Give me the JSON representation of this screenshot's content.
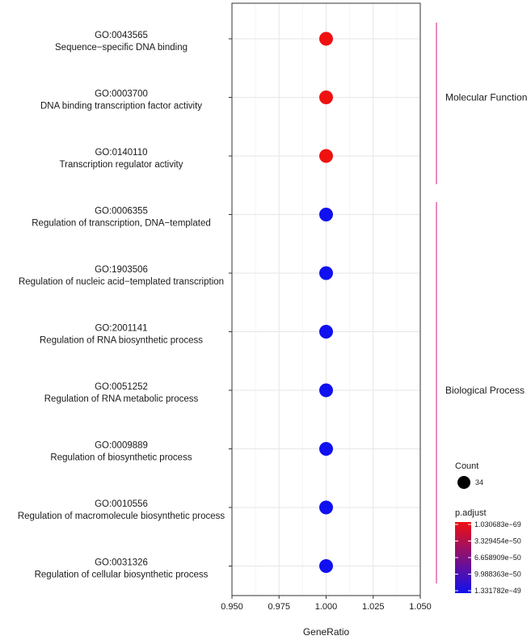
{
  "chart_data": {
    "type": "scatter",
    "xlabel": "GeneRatio",
    "xlim": [
      0.95,
      1.05
    ],
    "x_ticks": [
      "0.950",
      "0.975",
      "1.000",
      "1.025",
      "1.050"
    ],
    "x_tick_values": [
      0.95,
      0.975,
      1.0,
      1.025,
      1.05
    ],
    "grid": true,
    "terms": [
      {
        "id": "GO:0043565",
        "name": "Sequence−specific DNA binding",
        "category": "Molecular Function",
        "gene_ratio": 1.0,
        "count": 34,
        "color": "#f01010"
      },
      {
        "id": "GO:0003700",
        "name": "DNA binding transcription factor activity",
        "category": "Molecular Function",
        "gene_ratio": 1.0,
        "count": 34,
        "color": "#f01010"
      },
      {
        "id": "GO:0140110",
        "name": "Transcription regulator activity",
        "category": "Molecular Function",
        "gene_ratio": 1.0,
        "count": 34,
        "color": "#f01010"
      },
      {
        "id": "GO:0006355",
        "name": "Regulation of transcription, DNA−templated",
        "category": "Biological Process",
        "gene_ratio": 1.0,
        "count": 34,
        "color": "#1010f0"
      },
      {
        "id": "GO:1903506",
        "name": "Regulation of nucleic acid−templated transcription",
        "category": "Biological Process",
        "gene_ratio": 1.0,
        "count": 34,
        "color": "#1010f0"
      },
      {
        "id": "GO:2001141",
        "name": "Regulation of RNA biosynthetic process",
        "category": "Biological Process",
        "gene_ratio": 1.0,
        "count": 34,
        "color": "#1010f0"
      },
      {
        "id": "GO:0051252",
        "name": "Regulation of RNA metabolic process",
        "category": "Biological Process",
        "gene_ratio": 1.0,
        "count": 34,
        "color": "#1010f0"
      },
      {
        "id": "GO:0009889",
        "name": "Regulation of biosynthetic process",
        "category": "Biological Process",
        "gene_ratio": 1.0,
        "count": 34,
        "color": "#1010f0"
      },
      {
        "id": "GO:0010556",
        "name": "Regulation of macromolecule biosynthetic process",
        "category": "Biological Process",
        "gene_ratio": 1.0,
        "count": 34,
        "color": "#1010f0"
      },
      {
        "id": "GO:0031326",
        "name": "Regulation of cellular biosynthetic process",
        "category": "Biological Process",
        "gene_ratio": 1.0,
        "count": 34,
        "color": "#1010f0"
      }
    ],
    "facets": [
      {
        "label": "Molecular Function",
        "first": 0,
        "last": 2
      },
      {
        "label": "Biological Process",
        "first": 3,
        "last": 9
      }
    ],
    "facet_bar_color": "#e0409a",
    "legend_count": {
      "title": "Count",
      "value": "34"
    },
    "legend_padjust": {
      "title": "p.adjust",
      "labels": [
        "1.030683e−69",
        "3.329454e−50",
        "6.658909e−50",
        "9.988363e−50",
        "1.331782e−49"
      ],
      "color_low": "#f01010",
      "color_high": "#1010f0"
    },
    "legend_placement": "right"
  }
}
